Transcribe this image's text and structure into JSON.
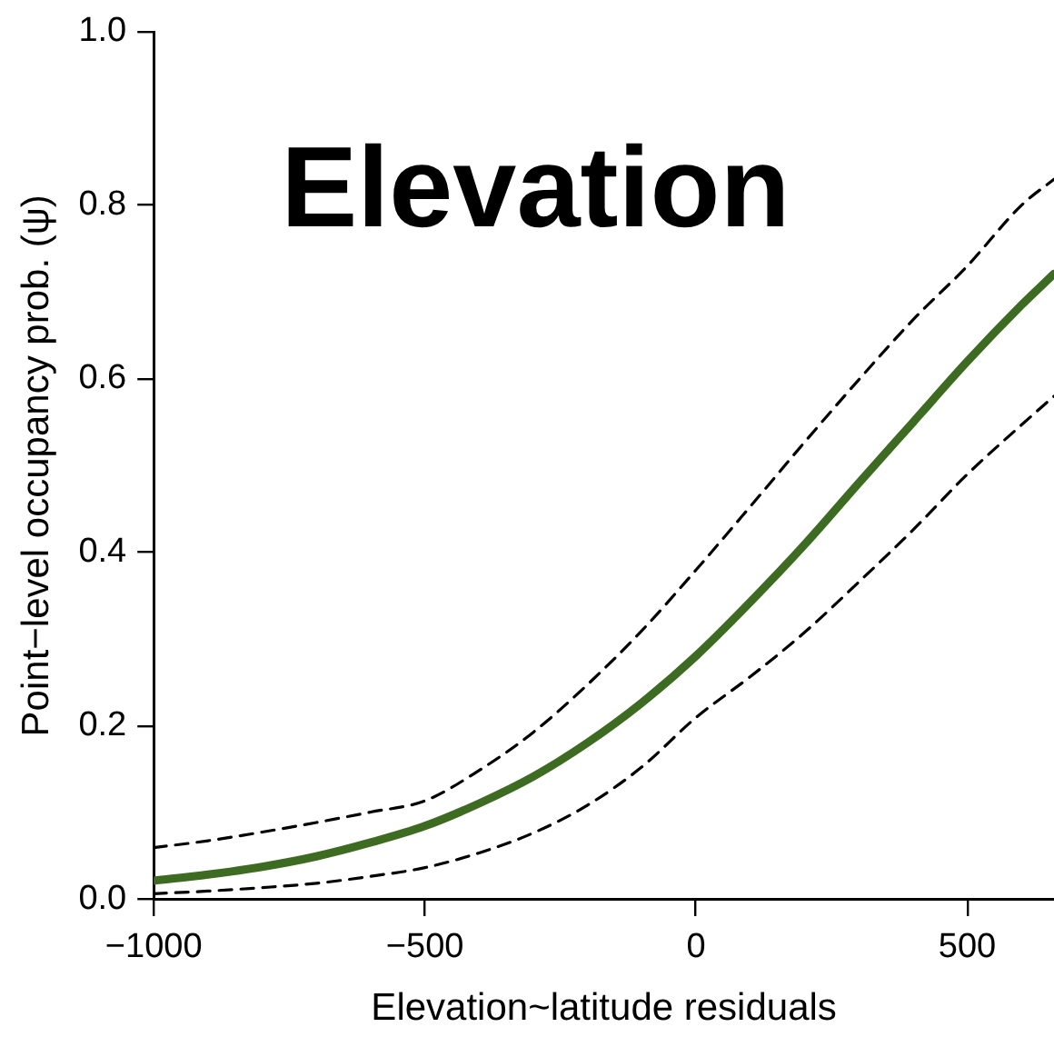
{
  "chart_data": {
    "type": "line",
    "title": "Elevation",
    "xlabel": "Elevation~latitude residuals",
    "ylabel": "Point−level occupancy prob. (ψ)",
    "x": [
      -1000,
      -900,
      -800,
      -700,
      -600,
      -500,
      -400,
      -300,
      -200,
      -100,
      0,
      100,
      200,
      300,
      400,
      500,
      600,
      660
    ],
    "series": [
      {
        "color": "#3d6b21",
        "line_style": "solid",
        "values": [
          0.022,
          0.029,
          0.038,
          0.05,
          0.066,
          0.085,
          0.111,
          0.142,
          0.181,
          0.227,
          0.281,
          0.343,
          0.409,
          0.48,
          0.55,
          0.62,
          0.685,
          0.721
        ]
      },
      {
        "color": "#000000",
        "line_style": "dashed",
        "values": [
          0.007,
          0.01,
          0.014,
          0.019,
          0.027,
          0.037,
          0.054,
          0.077,
          0.109,
          0.153,
          0.21,
          0.257,
          0.308,
          0.366,
          0.426,
          0.49,
          0.547,
          0.58
        ]
      },
      {
        "color": "#000000",
        "line_style": "dashed",
        "values": [
          0.06,
          0.068,
          0.078,
          0.089,
          0.101,
          0.114,
          0.149,
          0.193,
          0.248,
          0.31,
          0.38,
          0.453,
          0.527,
          0.599,
          0.668,
          0.73,
          0.8,
          0.83
        ]
      }
    ],
    "xlim": [
      -1000,
      660
    ],
    "xticks": [
      {
        "value": -1000,
        "label": "−1000"
      },
      {
        "value": -500,
        "label": "−500"
      },
      0,
      500
    ],
    "ylim": [
      0,
      1
    ],
    "yticks": [
      {
        "value": 0,
        "label": "0.0"
      },
      {
        "value": 0.2,
        "label": "0.2"
      },
      {
        "value": 0.4,
        "label": "0.4"
      },
      {
        "value": 0.6,
        "label": "0.6"
      },
      {
        "value": 0.8,
        "label": "0.8"
      },
      {
        "value": 1,
        "label": "1.0"
      }
    ],
    "grid": false,
    "legend": false,
    "marker": "none"
  }
}
